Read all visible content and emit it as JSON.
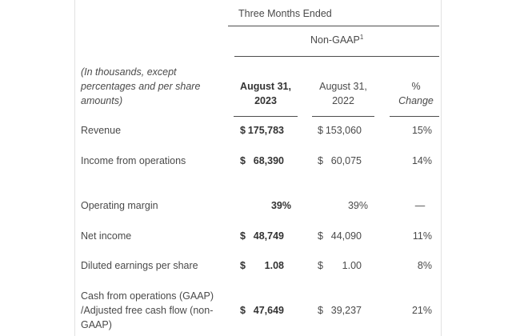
{
  "header": {
    "period": "Three Months Ended",
    "basis": "Non-GAAP",
    "basis_footnote": "1",
    "row_label_note": "(In thousands, except percentages and per share amounts)",
    "col1_line1": "August 31,",
    "col1_line2": "2023",
    "col2_line1": "August 31,",
    "col2_line2": "2022",
    "col3_line1": "%",
    "col3_line2": "Change"
  },
  "rows": [
    {
      "label": "Revenue",
      "cur_sym": "$",
      "cur_val": "175,783",
      "prior_sym": "$",
      "prior_val": "153,060",
      "change": "15%"
    },
    {
      "label": "Income from operations",
      "cur_sym": "$",
      "cur_val": "68,390",
      "prior_sym": "$",
      "prior_val": "60,075",
      "change": "14%"
    },
    {
      "label": "Operating margin",
      "cur_val": "39%",
      "prior_val": "39%",
      "change": "—"
    },
    {
      "label": "Net income",
      "cur_sym": "$",
      "cur_val": "48,749",
      "prior_sym": "$",
      "prior_val": "44,090",
      "change": "11%"
    },
    {
      "label": "Diluted earnings per share",
      "cur_sym": "$",
      "cur_val": "1.08",
      "prior_sym": "$",
      "prior_val": "1.00",
      "change": "8%"
    },
    {
      "label_line1": "Cash from operations (GAAP)",
      "label_line2": "/Adjusted free cash flow (non-",
      "label_line3": "GAAP)",
      "cur_sym": "$",
      "cur_val": "47,649",
      "prior_sym": "$",
      "prior_val": "39,237",
      "change": "21%"
    }
  ]
}
